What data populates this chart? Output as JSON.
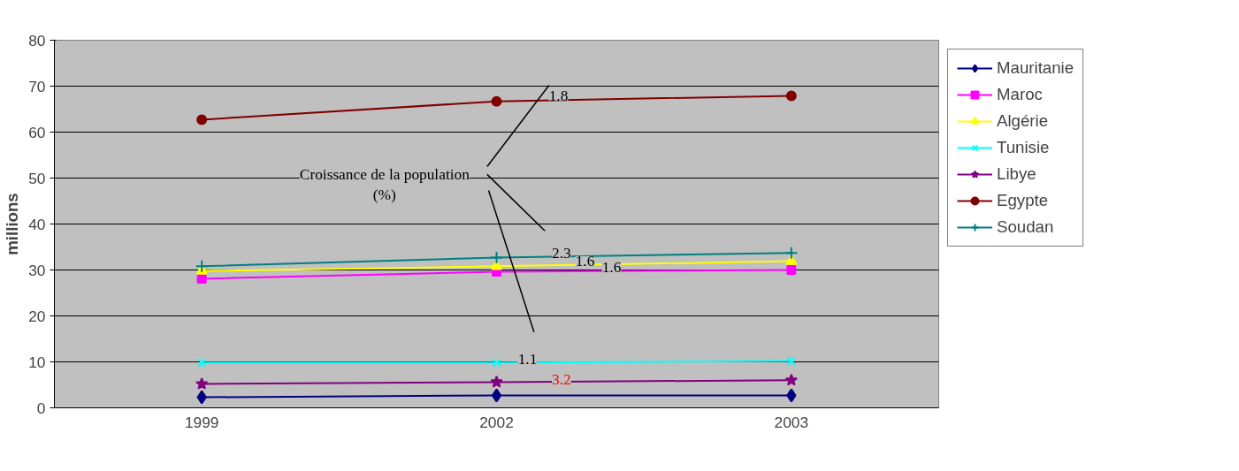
{
  "chart_data": {
    "type": "line",
    "ylabel": "millions",
    "categories": [
      "1999",
      "2002",
      "2003"
    ],
    "ylim": [
      0,
      80
    ],
    "yticks": [
      0,
      10,
      20,
      30,
      40,
      50,
      60,
      70,
      80
    ],
    "grid": "y",
    "legend": "right",
    "series": [
      {
        "name": "Mauritanie",
        "color": "#000080",
        "marker": "diamond",
        "values": [
          2.3,
          2.7,
          2.7
        ]
      },
      {
        "name": "Maroc",
        "color": "#ff00ff",
        "marker": "square",
        "values": [
          28.1,
          29.6,
          30.0
        ]
      },
      {
        "name": "Algérie",
        "color": "#ffff00",
        "marker": "triangle",
        "values": [
          29.8,
          30.8,
          31.9
        ]
      },
      {
        "name": "Tunisie",
        "color": "#00ffff",
        "marker": "x",
        "values": [
          9.8,
          9.8,
          10.2
        ]
      },
      {
        "name": "Libye",
        "color": "#800080",
        "marker": "star",
        "values": [
          5.2,
          5.6,
          6.0
        ]
      },
      {
        "name": "Egypte",
        "color": "#800000",
        "marker": "circle",
        "values": [
          62.7,
          66.7,
          67.9
        ]
      },
      {
        "name": "Soudan",
        "color": "#008080",
        "marker": "cross",
        "values": [
          30.8,
          32.7,
          33.7
        ]
      }
    ],
    "annotations": [
      "Croissance de la population\n(%)",
      "1.8",
      "2.3",
      "1.6",
      "1.6",
      "1.1",
      "3.2"
    ]
  }
}
